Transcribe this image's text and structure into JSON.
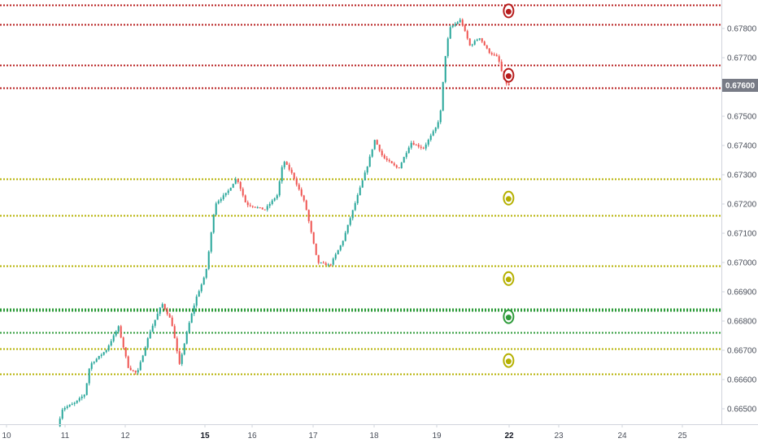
{
  "chart_data": {
    "type": "candlestick",
    "title": "",
    "xlabel": "",
    "ylabel": "",
    "ylim": [
      0.6644,
      0.6788
    ],
    "grid": false,
    "colors": {
      "up": "#26a69a",
      "down": "#ef5350",
      "resistance_line": "#b71c1c",
      "support_line": "#b5b000",
      "green_line": "#2e9b3a",
      "price_tag_bg": "#787b86",
      "axis_text": "#4a4f5a",
      "axis_border": "#d1d4dc"
    },
    "x_ticks": [
      {
        "label": "10",
        "x": 0,
        "bold": false
      },
      {
        "label": "11",
        "x": 1,
        "bold": false
      },
      {
        "label": "12",
        "x": 2,
        "bold": false
      },
      {
        "label": "15",
        "x": 3,
        "bold": true
      },
      {
        "label": "16",
        "x": 4,
        "bold": false
      },
      {
        "label": "17",
        "x": 5,
        "bold": false
      },
      {
        "label": "18",
        "x": 6,
        "bold": false
      },
      {
        "label": "19",
        "x": 7,
        "bold": false
      },
      {
        "label": "22",
        "x": 8,
        "bold": true
      },
      {
        "label": "23",
        "x": 9,
        "bold": false
      },
      {
        "label": "24",
        "x": 10,
        "bold": false
      },
      {
        "label": "25",
        "x": 11,
        "bold": false
      }
    ],
    "y_ticks": [
      "0.66500",
      "0.66600",
      "0.66700",
      "0.66800",
      "0.66900",
      "0.67000",
      "0.67100",
      "0.67200",
      "0.67300",
      "0.67400",
      "0.67500",
      "0.67700",
      "0.67800"
    ],
    "current_price": "0.67600",
    "horizontal_levels": [
      {
        "value": 0.6788,
        "kind": "resistance"
      },
      {
        "value": 0.67813,
        "kind": "resistance"
      },
      {
        "value": 0.67675,
        "kind": "resistance"
      },
      {
        "value": 0.67598,
        "kind": "resistance"
      },
      {
        "value": 0.67285,
        "kind": "support"
      },
      {
        "value": 0.6716,
        "kind": "support"
      },
      {
        "value": 0.6699,
        "kind": "support"
      },
      {
        "value": 0.66842,
        "kind": "green"
      },
      {
        "value": 0.66835,
        "kind": "green"
      },
      {
        "value": 0.6676,
        "kind": "green"
      },
      {
        "value": 0.66705,
        "kind": "support"
      },
      {
        "value": 0.6662,
        "kind": "support"
      }
    ],
    "target_markers": [
      {
        "x": 8.07,
        "y": 0.6786,
        "kind": "resistance"
      },
      {
        "x": 8.07,
        "y": 0.6764,
        "kind": "resistance"
      },
      {
        "x": 8.07,
        "y": 0.6722,
        "kind": "support"
      },
      {
        "x": 8.07,
        "y": 0.66945,
        "kind": "support"
      },
      {
        "x": 8.07,
        "y": 0.66815,
        "kind": "green"
      },
      {
        "x": 8.07,
        "y": 0.66665,
        "kind": "support"
      }
    ],
    "price_path": [
      [
        0.82,
        0.6644
      ],
      [
        0.9,
        0.665
      ],
      [
        1.1,
        0.6652
      ],
      [
        1.26,
        0.6655
      ],
      [
        1.34,
        0.6665
      ],
      [
        1.6,
        0.667
      ],
      [
        1.8,
        0.6678
      ],
      [
        1.96,
        0.6664
      ],
      [
        2.1,
        0.6662
      ],
      [
        2.3,
        0.6676
      ],
      [
        2.5,
        0.6686
      ],
      [
        2.65,
        0.668
      ],
      [
        2.78,
        0.6665
      ],
      [
        2.92,
        0.6678
      ],
      [
        3.05,
        0.6688
      ],
      [
        3.2,
        0.6696
      ],
      [
        3.26,
        0.6705
      ],
      [
        3.35,
        0.672
      ],
      [
        3.55,
        0.6724
      ],
      [
        3.7,
        0.6729
      ],
      [
        3.85,
        0.672
      ],
      [
        4.15,
        0.6718
      ],
      [
        4.35,
        0.6723
      ],
      [
        4.45,
        0.6735
      ],
      [
        4.6,
        0.673
      ],
      [
        4.8,
        0.672
      ],
      [
        5.0,
        0.67
      ],
      [
        5.2,
        0.6699
      ],
      [
        5.4,
        0.6707
      ],
      [
        5.6,
        0.672
      ],
      [
        5.8,
        0.6733
      ],
      [
        5.92,
        0.6742
      ],
      [
        6.05,
        0.6736
      ],
      [
        6.3,
        0.6732
      ],
      [
        6.5,
        0.6741
      ],
      [
        6.7,
        0.6739
      ],
      [
        6.9,
        0.6746
      ],
      [
        6.97,
        0.675
      ],
      [
        7.05,
        0.677
      ],
      [
        7.12,
        0.678
      ],
      [
        7.3,
        0.6783
      ],
      [
        7.45,
        0.6774
      ],
      [
        7.6,
        0.6777
      ],
      [
        7.75,
        0.6772
      ],
      [
        7.9,
        0.677
      ],
      [
        8.0,
        0.6762
      ],
      [
        8.1,
        0.676
      ]
    ]
  }
}
